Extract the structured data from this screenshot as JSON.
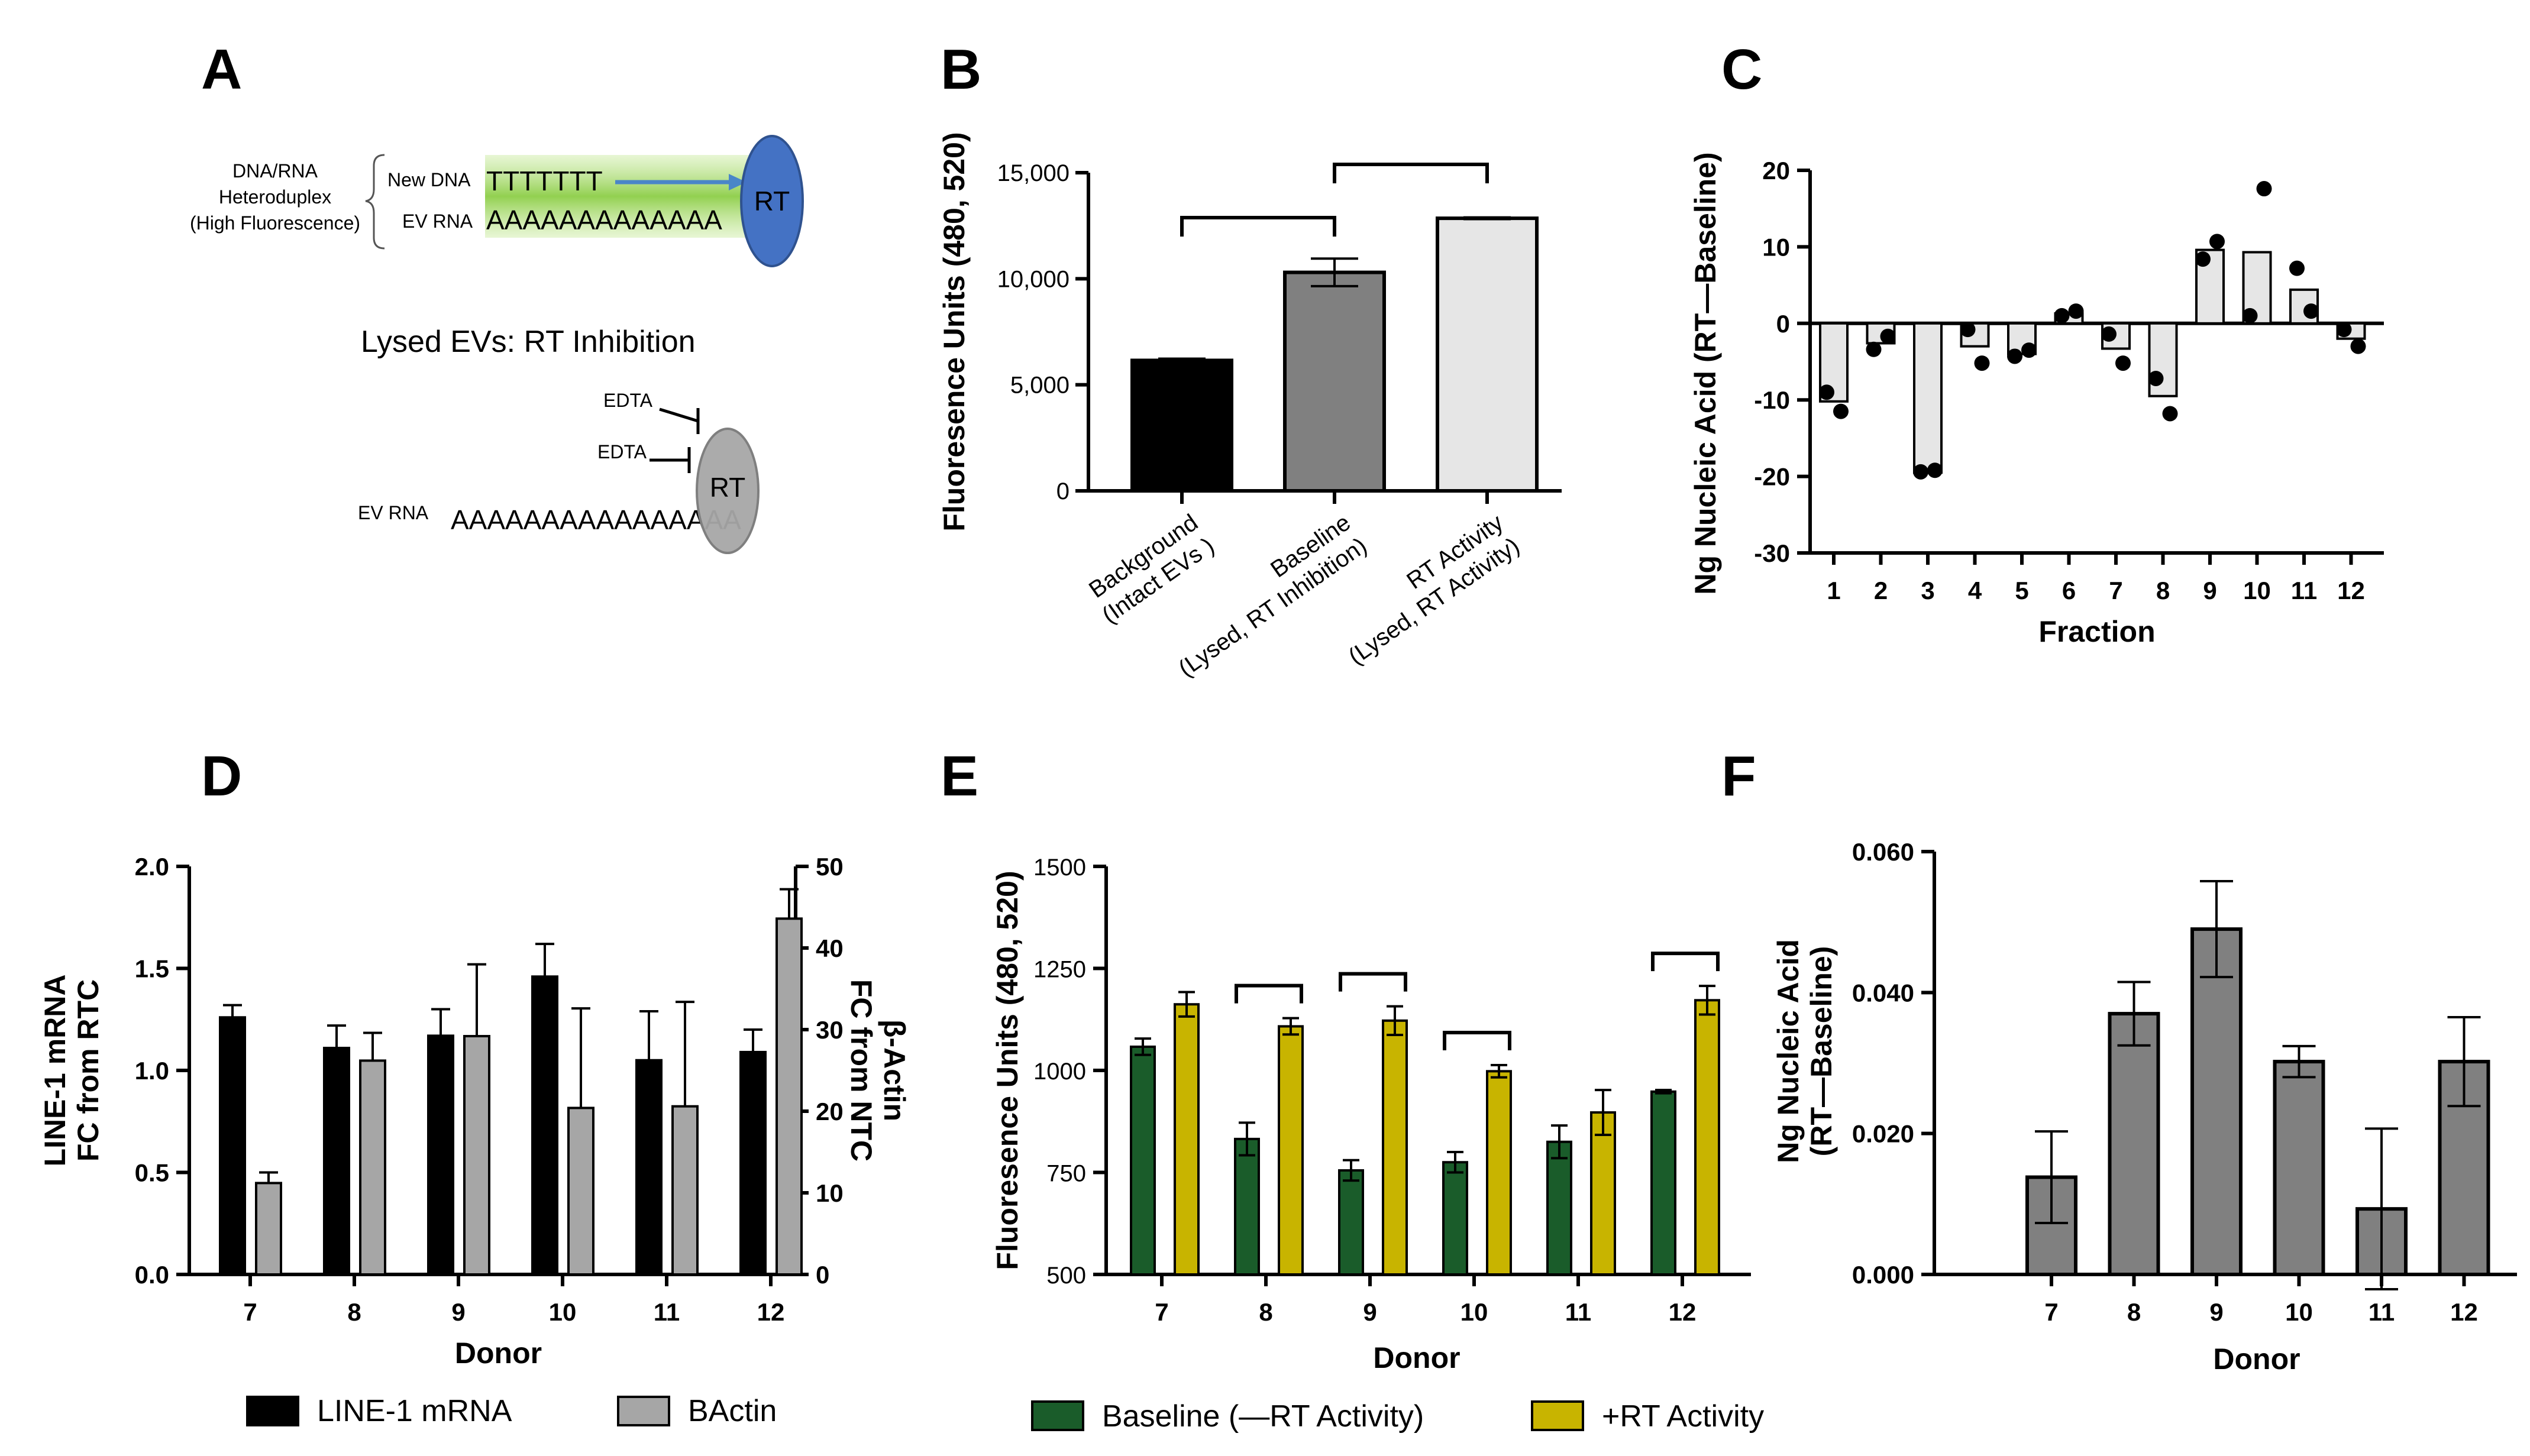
{
  "panels": {
    "A": {
      "letter": "A",
      "heteroduplex_label": [
        "DNA/RNA",
        "Heteroduplex",
        "(High Fluorescence)"
      ],
      "new_dna_label": "New DNA",
      "new_dna_seq": "TTTTTTT",
      "ev_rna_label": "EV RNA",
      "ev_rna_seq": "AAAAAAAAAAAAA",
      "rt_label": "RT",
      "inhibition_title": "Lysed EVs: RT Inhibition",
      "edta_label_1": "EDTA",
      "edta_label_2": "EDTA",
      "ev_rna_label_2": "EV RNA",
      "ev_rna_seq_2": "AAAAAAAAAAAAAAAA",
      "rt_label_2": "RT",
      "colors": {
        "rt_active": "#4472c4",
        "rt_inhibited": "#a6a6a6",
        "glow": "#92d050",
        "arrow": "#4a86c8"
      }
    },
    "B": {
      "letter": "B"
    },
    "C": {
      "letter": "C"
    },
    "D": {
      "letter": "D"
    },
    "E": {
      "letter": "E"
    },
    "F": {
      "letter": "F"
    }
  },
  "chart_data": [
    {
      "panel": "B",
      "type": "bar",
      "ylabel": "Fluoresence Units (480, 520)",
      "ylim": [
        0,
        15000
      ],
      "yticks": [
        0,
        5000,
        10000,
        15000
      ],
      "ytick_labels": [
        "0",
        "5,000",
        "10,000",
        "15,000"
      ],
      "categories": [
        [
          "Background",
          "(Intact EVs )"
        ],
        [
          "Baseline",
          "(Lysed, RT Inhibition)"
        ],
        [
          "RT Activity",
          "(Lysed, RT Activity)"
        ]
      ],
      "values": [
        6150,
        10300,
        12850
      ],
      "errors": [
        80,
        650,
        40
      ],
      "colors": [
        "#000000",
        "#808080",
        "#e6e6e6"
      ],
      "brackets": [
        [
          0,
          1
        ],
        [
          1,
          2
        ]
      ]
    },
    {
      "panel": "C",
      "type": "bar",
      "ylabel": "Ng Nucleic Acid (RT—Baseline)",
      "xlabel": "Fraction",
      "ylim": [
        -30,
        20
      ],
      "yticks": [
        -30,
        -20,
        -10,
        0,
        10,
        20
      ],
      "categories": [
        "1",
        "2",
        "3",
        "4",
        "5",
        "6",
        "7",
        "8",
        "9",
        "10",
        "11",
        "12"
      ],
      "values": [
        -10.2,
        -2.6,
        -19.5,
        -3.0,
        -4.0,
        1.3,
        -3.3,
        -9.5,
        9.6,
        9.3,
        4.4,
        -2.0
      ],
      "points": [
        [
          -9,
          -11.5
        ],
        [
          -3.4,
          -1.7
        ],
        [
          -19.4,
          -19.2
        ],
        [
          -0.8,
          -5.2
        ],
        [
          -4.3,
          -3.5
        ],
        [
          1.0,
          1.6
        ],
        [
          -1.4,
          -5.2
        ],
        [
          -7.2,
          -11.8
        ],
        [
          8.4,
          10.7
        ],
        [
          1.0,
          17.6
        ],
        [
          7.2,
          1.6
        ],
        [
          -0.8,
          -3.0
        ]
      ],
      "colors": {
        "bar": "#e6e6e6",
        "point": "#000000"
      }
    },
    {
      "panel": "D",
      "type": "bar",
      "ylabel": [
        "LINE-1 mRNA",
        "FC from RTC"
      ],
      "y2label": [
        "β-Actin",
        "FC from NTC"
      ],
      "xlabel": "Donor",
      "ylim": [
        0,
        2.0
      ],
      "yticks": [
        0.0,
        0.5,
        1.0,
        1.5,
        2.0
      ],
      "ytick_labels": [
        "0.0",
        "0.5",
        "1.0",
        "1.5",
        "2.0"
      ],
      "y2lim": [
        0,
        50
      ],
      "y2ticks": [
        0,
        10,
        20,
        30,
        40,
        50
      ],
      "categories": [
        "7",
        "8",
        "9",
        "10",
        "11",
        "12"
      ],
      "series": [
        {
          "name": "LINE-1 mRNA",
          "axis": "left",
          "values": [
            1.26,
            1.11,
            1.17,
            1.46,
            1.05,
            1.09
          ],
          "errors": [
            0.06,
            0.11,
            0.13,
            0.16,
            0.24,
            0.11
          ],
          "color": "#000000"
        },
        {
          "name": "BActin",
          "axis": "right",
          "values": [
            11.2,
            26.2,
            29.2,
            20.4,
            20.6,
            43.6
          ],
          "errors": [
            1.3,
            3.4,
            8.8,
            12.2,
            12.8,
            3.6
          ],
          "color": "#a6a6a6"
        }
      ],
      "legend": [
        "LINE-1 mRNA",
        "BActin"
      ]
    },
    {
      "panel": "E",
      "type": "bar",
      "ylabel": "Fluoresence Units (480, 520)",
      "xlabel": "Donor",
      "ylim": [
        500,
        1500
      ],
      "yticks": [
        500,
        750,
        1000,
        1250,
        1500
      ],
      "categories": [
        "7",
        "8",
        "9",
        "10",
        "11",
        "12"
      ],
      "series": [
        {
          "name": "Baseline (—RT Activity)",
          "values": [
            1058,
            832,
            755,
            775,
            825,
            948
          ],
          "errors": [
            20,
            40,
            25,
            25,
            40,
            4
          ],
          "color": "#1a5c2a"
        },
        {
          "name": "+RT Activity",
          "values": [
            1162,
            1108,
            1122,
            998,
            897,
            1172
          ],
          "errors": [
            30,
            20,
            35,
            15,
            55,
            35
          ],
          "color": "#c8b400"
        }
      ],
      "brackets": [
        "8",
        "9",
        "10",
        "12"
      ],
      "legend": [
        "Baseline (—RT Activity)",
        "+RT Activity"
      ]
    },
    {
      "panel": "F",
      "type": "bar",
      "ylabel": [
        "Ng Nucleic Acid",
        "(RT—Baseline)"
      ],
      "xlabel": "Donor",
      "ylim": [
        0,
        0.06
      ],
      "yticks": [
        0.0,
        0.02,
        0.04,
        0.06
      ],
      "ytick_labels": [
        "0.000",
        "0.020",
        "0.040",
        "0.060"
      ],
      "categories": [
        "7",
        "8",
        "9",
        "10",
        "11",
        "12"
      ],
      "values": [
        0.0138,
        0.037,
        0.049,
        0.0302,
        0.0093,
        0.0302
      ],
      "errors": [
        0.0065,
        0.0045,
        0.0068,
        0.0022,
        0.0114,
        0.0063
      ],
      "color": "#808080"
    }
  ]
}
